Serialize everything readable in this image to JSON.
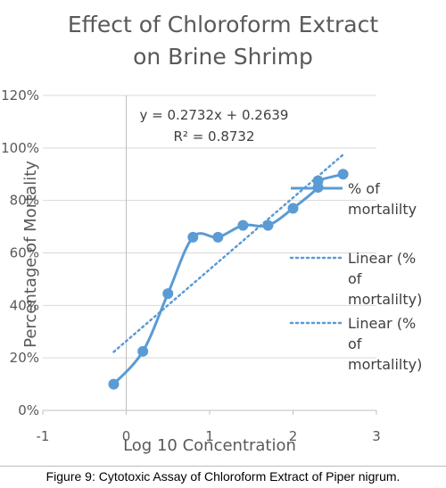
{
  "chart_data": {
    "type": "scatter",
    "title": [
      "Effect of Chloroform Extract",
      "on Brine Shrimp"
    ],
    "xlabel": "Log 10 Concentration",
    "ylabel": "Percentage of Mortality",
    "xlim": [
      -1,
      3
    ],
    "ylim": [
      0,
      1.2
    ],
    "x_ticks": [
      "-1",
      "0",
      "1",
      "2",
      "3"
    ],
    "y_ticks": [
      "0%",
      "20%",
      "40%",
      "60%",
      "80%",
      "100%",
      "120%"
    ],
    "grid": "horizontal",
    "series": [
      {
        "name": "% of mortalilty",
        "style": "smooth line with markers",
        "color": "#5b9bd5",
        "x": [
          -0.15,
          0.2,
          0.5,
          0.8,
          1.1,
          1.4,
          1.7,
          2.0,
          2.3,
          2.3,
          2.6
        ],
        "y": [
          0.1,
          0.225,
          0.445,
          0.66,
          0.66,
          0.705,
          0.705,
          0.77,
          0.85,
          0.875,
          0.9
        ]
      }
    ],
    "trendlines": [
      {
        "name": "Linear (% of mortalilty)",
        "slope": 0.2732,
        "intercept": 0.2639,
        "x_range": [
          -0.15,
          2.6
        ],
        "color": "#5b9bd5"
      }
    ],
    "equation": [
      "y = 0.2732x + 0.2639",
      "R² = 0.8732"
    ],
    "legend": {
      "position": "right",
      "entries": [
        {
          "kind": "line",
          "lines": [
            "% of",
            "mortalilty"
          ]
        },
        {
          "kind": "dotted",
          "lines": [
            "Linear (%",
            "of",
            "mortalilty)"
          ]
        },
        {
          "kind": "dotted",
          "lines": [
            "Linear (%",
            "of",
            "mortalilty)"
          ]
        }
      ]
    }
  },
  "caption": "Figure 9: Cytotoxic Assay of Chloroform Extract of Piper nigrum."
}
